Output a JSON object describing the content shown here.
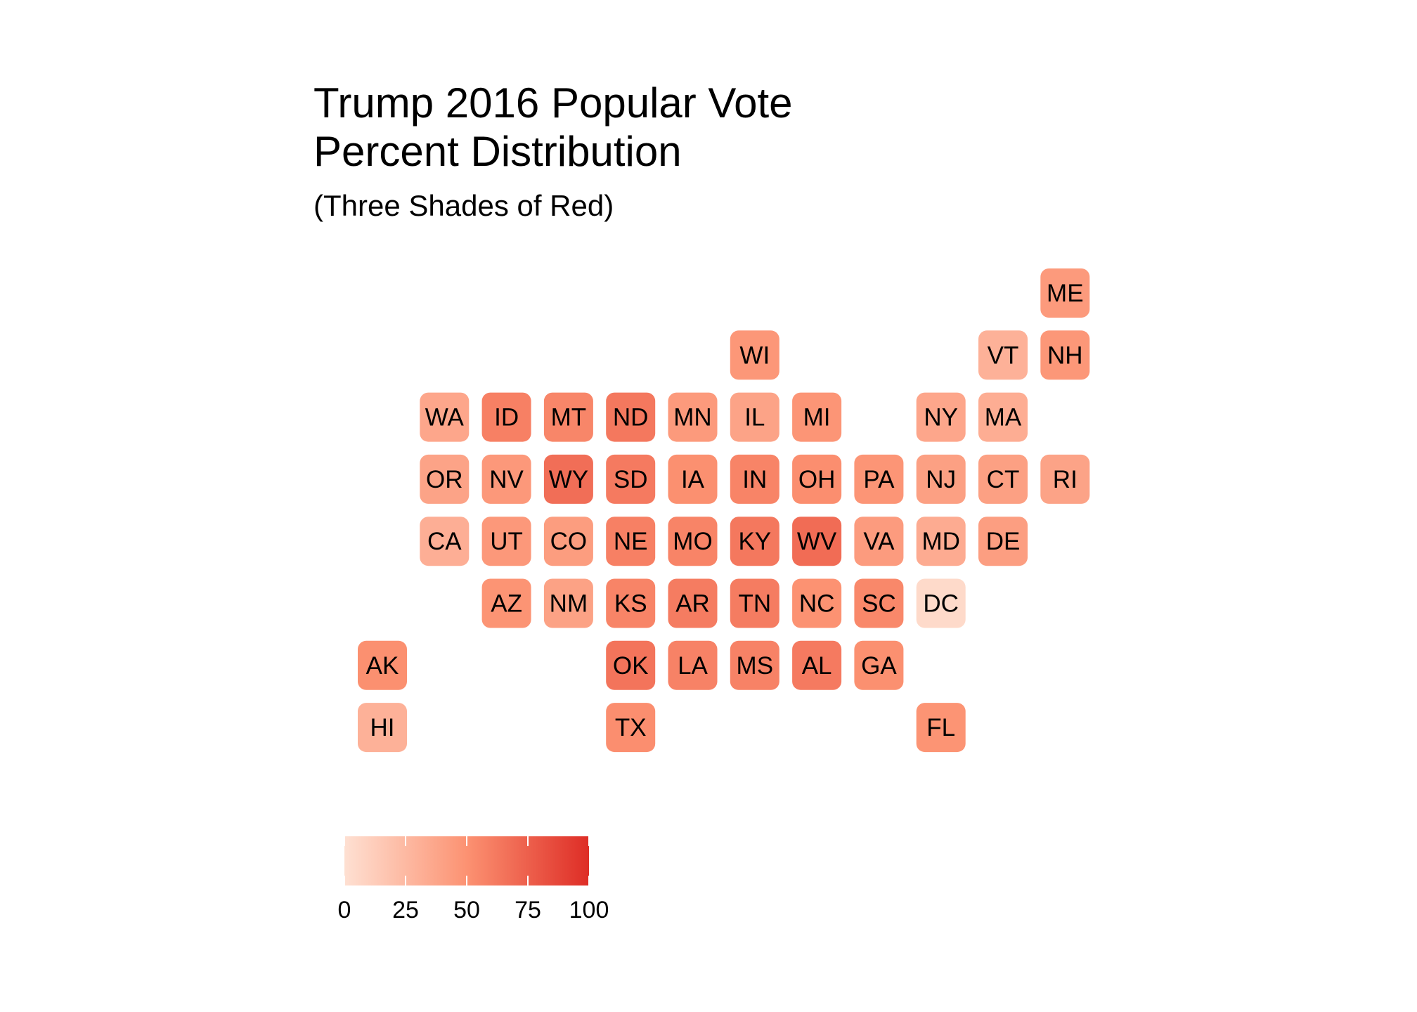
{
  "chart_data": {
    "type": "heatmap",
    "title_lines": [
      "Trump 2016 Popular Vote",
      "Percent Distribution"
    ],
    "subtitle": "(Three Shades of Red)",
    "scale": {
      "min": 0,
      "max": 100,
      "ticks": [
        0,
        25,
        50,
        75,
        100
      ],
      "colors": [
        "#fee0d2",
        "#fc9272",
        "#de2d26"
      ]
    },
    "legend_position": "bottom-left",
    "states": [
      {
        "abbr": "ME",
        "col": 11,
        "row": 0,
        "value": 45
      },
      {
        "abbr": "WI",
        "col": 6,
        "row": 1,
        "value": 47
      },
      {
        "abbr": "VT",
        "col": 10,
        "row": 1,
        "value": 30
      },
      {
        "abbr": "NH",
        "col": 11,
        "row": 1,
        "value": 47
      },
      {
        "abbr": "WA",
        "col": 1,
        "row": 2,
        "value": 37
      },
      {
        "abbr": "ID",
        "col": 2,
        "row": 2,
        "value": 59
      },
      {
        "abbr": "MT",
        "col": 3,
        "row": 2,
        "value": 56
      },
      {
        "abbr": "ND",
        "col": 4,
        "row": 2,
        "value": 63
      },
      {
        "abbr": "MN",
        "col": 5,
        "row": 2,
        "value": 45
      },
      {
        "abbr": "IL",
        "col": 6,
        "row": 2,
        "value": 39
      },
      {
        "abbr": "MI",
        "col": 7,
        "row": 2,
        "value": 48
      },
      {
        "abbr": "NY",
        "col": 9,
        "row": 2,
        "value": 37
      },
      {
        "abbr": "MA",
        "col": 10,
        "row": 2,
        "value": 33
      },
      {
        "abbr": "OR",
        "col": 1,
        "row": 3,
        "value": 39
      },
      {
        "abbr": "NV",
        "col": 2,
        "row": 3,
        "value": 46
      },
      {
        "abbr": "WY",
        "col": 3,
        "row": 3,
        "value": 68
      },
      {
        "abbr": "SD",
        "col": 4,
        "row": 3,
        "value": 62
      },
      {
        "abbr": "IA",
        "col": 5,
        "row": 3,
        "value": 51
      },
      {
        "abbr": "IN",
        "col": 6,
        "row": 3,
        "value": 57
      },
      {
        "abbr": "OH",
        "col": 7,
        "row": 3,
        "value": 52
      },
      {
        "abbr": "PA",
        "col": 8,
        "row": 3,
        "value": 48
      },
      {
        "abbr": "NJ",
        "col": 9,
        "row": 3,
        "value": 41
      },
      {
        "abbr": "CT",
        "col": 10,
        "row": 3,
        "value": 41
      },
      {
        "abbr": "RI",
        "col": 11,
        "row": 3,
        "value": 39
      },
      {
        "abbr": "CA",
        "col": 1,
        "row": 4,
        "value": 32
      },
      {
        "abbr": "UT",
        "col": 2,
        "row": 4,
        "value": 46
      },
      {
        "abbr": "CO",
        "col": 3,
        "row": 4,
        "value": 43
      },
      {
        "abbr": "NE",
        "col": 4,
        "row": 4,
        "value": 59
      },
      {
        "abbr": "MO",
        "col": 5,
        "row": 4,
        "value": 57
      },
      {
        "abbr": "KY",
        "col": 6,
        "row": 4,
        "value": 63
      },
      {
        "abbr": "WV",
        "col": 7,
        "row": 4,
        "value": 69
      },
      {
        "abbr": "VA",
        "col": 8,
        "row": 4,
        "value": 44
      },
      {
        "abbr": "MD",
        "col": 9,
        "row": 4,
        "value": 34
      },
      {
        "abbr": "DE",
        "col": 10,
        "row": 4,
        "value": 42
      },
      {
        "abbr": "AZ",
        "col": 2,
        "row": 5,
        "value": 49
      },
      {
        "abbr": "NM",
        "col": 3,
        "row": 5,
        "value": 40
      },
      {
        "abbr": "KS",
        "col": 4,
        "row": 5,
        "value": 57
      },
      {
        "abbr": "AR",
        "col": 5,
        "row": 5,
        "value": 61
      },
      {
        "abbr": "TN",
        "col": 6,
        "row": 5,
        "value": 61
      },
      {
        "abbr": "NC",
        "col": 7,
        "row": 5,
        "value": 50
      },
      {
        "abbr": "SC",
        "col": 8,
        "row": 5,
        "value": 55
      },
      {
        "abbr": "DC",
        "col": 9,
        "row": 5,
        "value": 4
      },
      {
        "abbr": "AK",
        "col": 0,
        "row": 6,
        "value": 51
      },
      {
        "abbr": "OK",
        "col": 4,
        "row": 6,
        "value": 65
      },
      {
        "abbr": "LA",
        "col": 5,
        "row": 6,
        "value": 58
      },
      {
        "abbr": "MS",
        "col": 6,
        "row": 6,
        "value": 58
      },
      {
        "abbr": "AL",
        "col": 7,
        "row": 6,
        "value": 62
      },
      {
        "abbr": "GA",
        "col": 8,
        "row": 6,
        "value": 51
      },
      {
        "abbr": "HI",
        "col": 0,
        "row": 7,
        "value": 30
      },
      {
        "abbr": "TX",
        "col": 4,
        "row": 7,
        "value": 52
      },
      {
        "abbr": "FL",
        "col": 9,
        "row": 7,
        "value": 49
      }
    ]
  }
}
